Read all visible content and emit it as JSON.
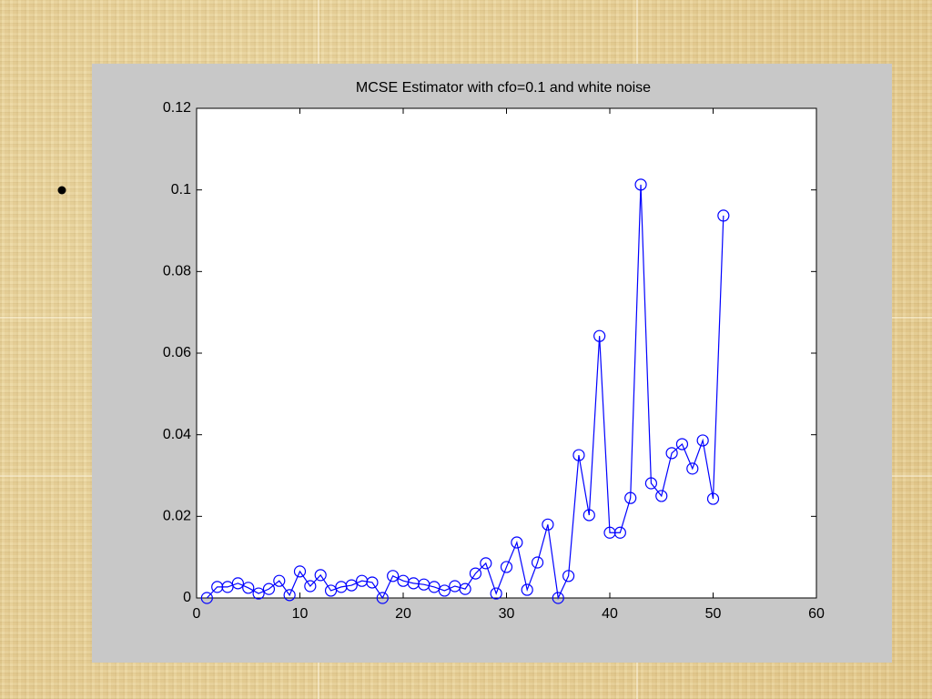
{
  "chart_data": {
    "type": "line",
    "title": "MCSE  Estimator with cfo=0.1 and white noise",
    "x": [
      1,
      2,
      3,
      4,
      5,
      6,
      7,
      8,
      9,
      10,
      11,
      12,
      13,
      14,
      15,
      16,
      17,
      18,
      19,
      20,
      21,
      22,
      23,
      24,
      25,
      26,
      27,
      28,
      29,
      30,
      31,
      32,
      33,
      34,
      35,
      36,
      37,
      38,
      39,
      40,
      41,
      42,
      43,
      44,
      45,
      46,
      47,
      48,
      49,
      50,
      51
    ],
    "series": [
      {
        "color": "#0000ff",
        "values": [
          0,
          0.0027,
          0.0027,
          0.0036,
          0.0025,
          0.0011,
          0.0022,
          0.0042,
          0.0007,
          0.0065,
          0.0029,
          0.0056,
          0.0018,
          0.0027,
          0.0031,
          0.0042,
          0.0038,
          0,
          0.0054,
          0.0042,
          0.0036,
          0.0033,
          0.0027,
          0.0018,
          0.0029,
          0.0022,
          0.006,
          0.0085,
          0.0011,
          0.0076,
          0.0136,
          0.002,
          0.0087,
          0.018,
          0,
          0.0054,
          0.035,
          0.0203,
          0.0642,
          0.016,
          0.016,
          0.0245,
          0.1013,
          0.0281,
          0.025,
          0.0355,
          0.0377,
          0.0317,
          0.0386,
          0.0243,
          0.0937
        ]
      }
    ],
    "xlim": [
      0,
      60
    ],
    "xticks": [
      0,
      10,
      20,
      30,
      40,
      50,
      60
    ],
    "ylim": [
      0,
      0.12
    ],
    "yticks": [
      0,
      0.02,
      0.04,
      0.06,
      0.08,
      0.1,
      0.12
    ],
    "grid": false,
    "marker": "circle"
  }
}
